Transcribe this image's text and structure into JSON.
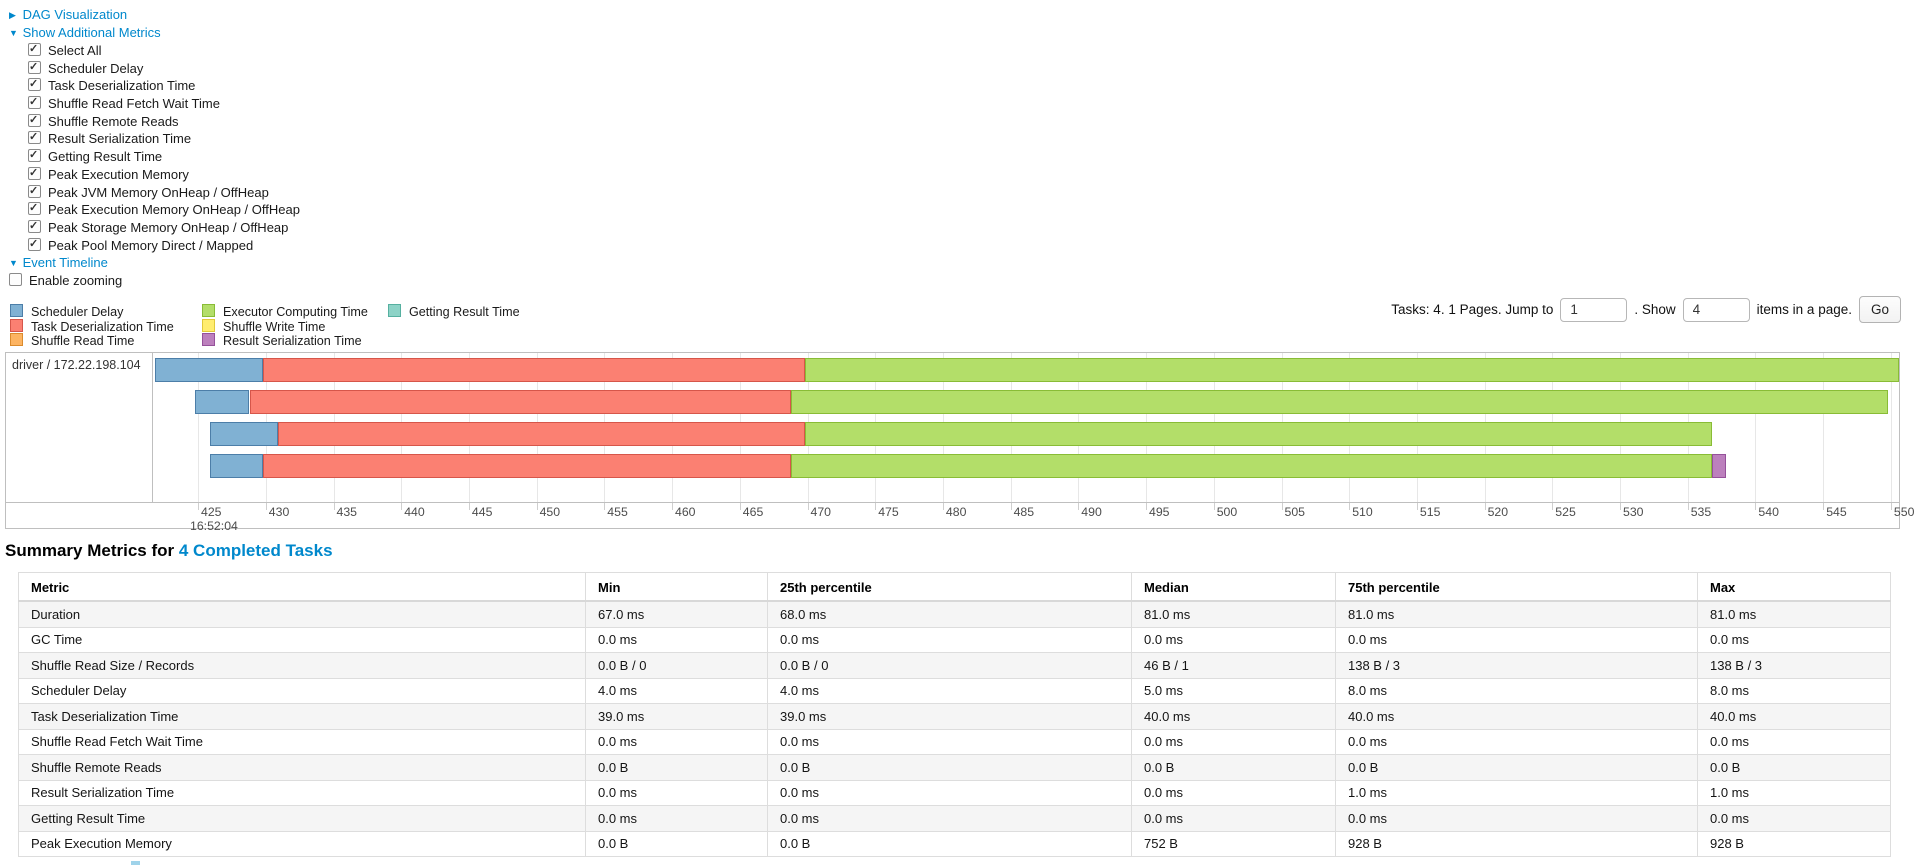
{
  "colors": {
    "link": "#0088cc",
    "grid": "#e7e7e7",
    "chart_border": "#bfbfbf"
  },
  "controls": {
    "dag": {
      "label": "DAG Visualization",
      "arrow": "▶",
      "expanded": false
    },
    "metrics_toggle": {
      "label": "Show Additional Metrics",
      "arrow": "▼",
      "expanded": true
    },
    "metric_checkboxes": [
      {
        "label": "Select All",
        "checked": true
      },
      {
        "label": "Scheduler Delay",
        "checked": true
      },
      {
        "label": "Task Deserialization Time",
        "checked": true
      },
      {
        "label": "Shuffle Read Fetch Wait Time",
        "checked": true
      },
      {
        "label": "Shuffle Remote Reads",
        "checked": true
      },
      {
        "label": "Result Serialization Time",
        "checked": true
      },
      {
        "label": "Getting Result Time",
        "checked": true
      },
      {
        "label": "Peak Execution Memory",
        "checked": true
      },
      {
        "label": "Peak JVM Memory OnHeap / OffHeap",
        "checked": true
      },
      {
        "label": "Peak Execution Memory OnHeap / OffHeap",
        "checked": true
      },
      {
        "label": "Peak Storage Memory OnHeap / OffHeap",
        "checked": true
      },
      {
        "label": "Peak Pool Memory Direct / Mapped",
        "checked": true
      }
    ],
    "event_timeline": {
      "label": "Event Timeline",
      "arrow": "▼",
      "expanded": true
    },
    "enable_zooming": {
      "label": "Enable zooming",
      "checked": false
    }
  },
  "pagination": {
    "prefix": "Tasks: 4. 1 Pages. Jump to",
    "jump_value": "1",
    "mid": ". Show",
    "show_value": "4",
    "suffix": "items in a page.",
    "go_label": "Go"
  },
  "chart_data": {
    "type": "timeline-gantt",
    "group_label": "driver / 172.22.198.104",
    "axis": {
      "unit": "ms offset within second shown below first tick",
      "domain_start": 421.6,
      "domain_end": 550.6,
      "tick_labels": [
        425,
        430,
        435,
        440,
        445,
        450,
        455,
        460,
        465,
        470,
        475,
        480,
        485,
        490,
        495,
        500,
        505,
        510,
        515,
        520,
        525,
        530,
        535,
        540,
        545,
        550
      ],
      "time_label": "16:52:04"
    },
    "legend_columns": [
      [
        {
          "key": "scheduler_delay",
          "label": "Scheduler Delay"
        },
        {
          "key": "task_deserialization",
          "label": "Task Deserialization Time"
        },
        {
          "key": "shuffle_read",
          "label": "Shuffle Read Time"
        }
      ],
      [
        {
          "key": "executor_computing",
          "label": "Executor Computing Time"
        },
        {
          "key": "shuffle_write",
          "label": "Shuffle Write Time"
        },
        {
          "key": "result_serialization",
          "label": "Result Serialization Time"
        }
      ],
      [
        {
          "key": "getting_result",
          "label": "Getting Result Time"
        }
      ]
    ],
    "palette": {
      "scheduler_delay": {
        "fill": "#80B1D3",
        "border": "#4C7EA8"
      },
      "task_deserialization": {
        "fill": "#FB8072",
        "border": "#D6564A"
      },
      "shuffle_read": {
        "fill": "#FDB462",
        "border": "#DB8B2D"
      },
      "executor_computing": {
        "fill": "#B3DE69",
        "border": "#89BC36"
      },
      "shuffle_write": {
        "fill": "#FFED6F",
        "border": "#E0C93A"
      },
      "result_serialization": {
        "fill": "#BC80BD",
        "border": "#95519A"
      },
      "getting_result": {
        "fill": "#8DD3C7",
        "border": "#56B0A0"
      }
    },
    "tasks": [
      {
        "row": 0,
        "segments": [
          {
            "type": "scheduler_delay",
            "start": 421.8,
            "end": 429.8
          },
          {
            "type": "task_deserialization",
            "start": 429.8,
            "end": 469.8
          },
          {
            "type": "executor_computing",
            "start": 469.8,
            "end": 550.6
          }
        ]
      },
      {
        "row": 1,
        "segments": [
          {
            "type": "scheduler_delay",
            "start": 424.8,
            "end": 428.8
          },
          {
            "type": "task_deserialization",
            "start": 428.8,
            "end": 468.8
          },
          {
            "type": "executor_computing",
            "start": 468.8,
            "end": 549.8
          }
        ]
      },
      {
        "row": 2,
        "segments": [
          {
            "type": "scheduler_delay",
            "start": 425.9,
            "end": 430.9
          },
          {
            "type": "task_deserialization",
            "start": 430.9,
            "end": 469.8
          },
          {
            "type": "executor_computing",
            "start": 469.8,
            "end": 536.8
          }
        ]
      },
      {
        "row": 3,
        "segments": [
          {
            "type": "scheduler_delay",
            "start": 425.9,
            "end": 429.8
          },
          {
            "type": "task_deserialization",
            "start": 429.8,
            "end": 468.8
          },
          {
            "type": "executor_computing",
            "start": 468.8,
            "end": 536.8
          },
          {
            "type": "result_serialization",
            "start": 536.8,
            "end": 537.8
          }
        ]
      }
    ]
  },
  "summary": {
    "title_prefix": "Summary Metrics for",
    "title_link": "4 Completed Tasks",
    "columns": [
      "Metric",
      "Min",
      "25th percentile",
      "Median",
      "75th percentile",
      "Max"
    ],
    "rows": [
      {
        "metric": "Duration",
        "values": [
          "67.0 ms",
          "68.0 ms",
          "81.0 ms",
          "81.0 ms",
          "81.0 ms"
        ]
      },
      {
        "metric": "GC Time",
        "values": [
          "0.0 ms",
          "0.0 ms",
          "0.0 ms",
          "0.0 ms",
          "0.0 ms"
        ]
      },
      {
        "metric": "Shuffle Read Size / Records",
        "values": [
          "0.0 B / 0",
          "0.0 B / 0",
          "46 B / 1",
          "138 B / 3",
          "138 B / 3"
        ]
      },
      {
        "metric": "Scheduler Delay",
        "values": [
          "4.0 ms",
          "4.0 ms",
          "5.0 ms",
          "8.0 ms",
          "8.0 ms"
        ]
      },
      {
        "metric": "Task Deserialization Time",
        "values": [
          "39.0 ms",
          "39.0 ms",
          "40.0 ms",
          "40.0 ms",
          "40.0 ms"
        ]
      },
      {
        "metric": "Shuffle Read Fetch Wait Time",
        "values": [
          "0.0 ms",
          "0.0 ms",
          "0.0 ms",
          "0.0 ms",
          "0.0 ms"
        ]
      },
      {
        "metric": "Shuffle Remote Reads",
        "values": [
          "0.0 B",
          "0.0 B",
          "0.0 B",
          "0.0 B",
          "0.0 B"
        ]
      },
      {
        "metric": "Result Serialization Time",
        "values": [
          "0.0 ms",
          "0.0 ms",
          "0.0 ms",
          "1.0 ms",
          "1.0 ms"
        ]
      },
      {
        "metric": "Getting Result Time",
        "values": [
          "0.0 ms",
          "0.0 ms",
          "0.0 ms",
          "0.0 ms",
          "0.0 ms"
        ]
      },
      {
        "metric": "Peak Execution Memory",
        "values": [
          "0.0 B",
          "0.0 B",
          "752 B",
          "928 B",
          "928 B"
        ]
      }
    ]
  }
}
